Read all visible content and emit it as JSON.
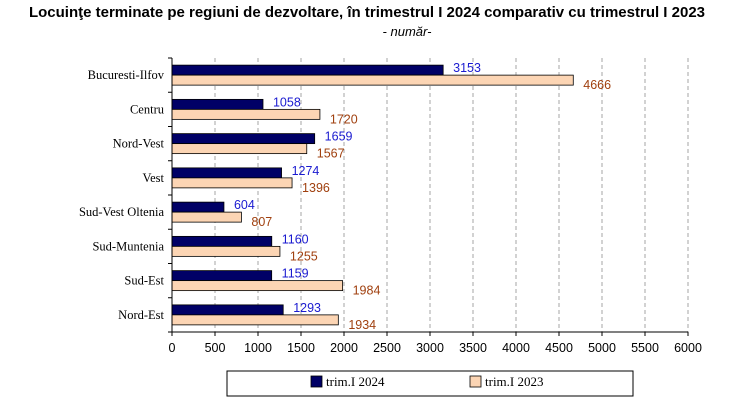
{
  "chart_data": {
    "type": "bar",
    "orientation": "horizontal",
    "title": "Locuinţe terminate pe regiuni de dezvoltare, în trimestrul I 2024 comparativ cu trimestrul I 2023",
    "subtitle": "- număr-",
    "categories": [
      "Bucuresti-Ilfov",
      "Centru",
      "Nord-Vest",
      "Vest",
      "Sud-Vest Oltenia",
      "Sud-Muntenia",
      "Sud-Est",
      "Nord-Est"
    ],
    "series": [
      {
        "name": "trim.I 2024",
        "color": "#000066",
        "label_color": "#1a1ad0",
        "values": [
          3153,
          1058,
          1659,
          1274,
          604,
          1160,
          1159,
          1293
        ]
      },
      {
        "name": "trim.I 2023",
        "color": "#fcd5b4",
        "label_color": "#a0400f",
        "values": [
          4666,
          1720,
          1567,
          1396,
          807,
          1255,
          1984,
          1934
        ]
      }
    ],
    "xlim": [
      0,
      6000
    ],
    "xticks": [
      0,
      500,
      1000,
      1500,
      2000,
      2500,
      3000,
      3500,
      4000,
      4500,
      5000,
      5500,
      6000
    ],
    "grid": "vertical dashed",
    "legend_position": "bottom"
  }
}
